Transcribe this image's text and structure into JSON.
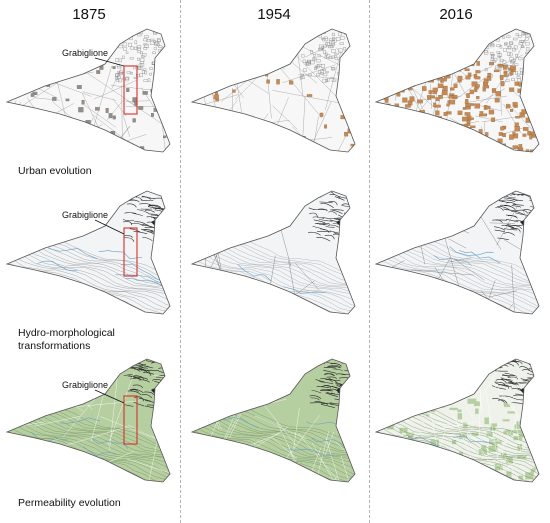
{
  "columns": [
    "1875",
    "1954",
    "2016"
  ],
  "rows": [
    {
      "label_lines": [
        "Urban evolution"
      ],
      "layer": "urban",
      "building_counts": [
        45,
        30,
        260
      ]
    },
    {
      "label_lines": [
        "Hydro-morphological",
        "transformations"
      ],
      "layer": "hydro"
    },
    {
      "label_lines": [
        "Permeability evolution"
      ],
      "layer": "permeability"
    }
  ],
  "callout": "Grabiglione",
  "colors": {
    "outline": "#555555",
    "street": "#9a9a9a",
    "building_gray": "#8e8e8e",
    "building_orange": "#c68a52",
    "river": "#6a9fc4",
    "terrain_dark": "#2b2b2b",
    "green_fill": "#b6cfa0",
    "red_frame": "#d9302b"
  }
}
